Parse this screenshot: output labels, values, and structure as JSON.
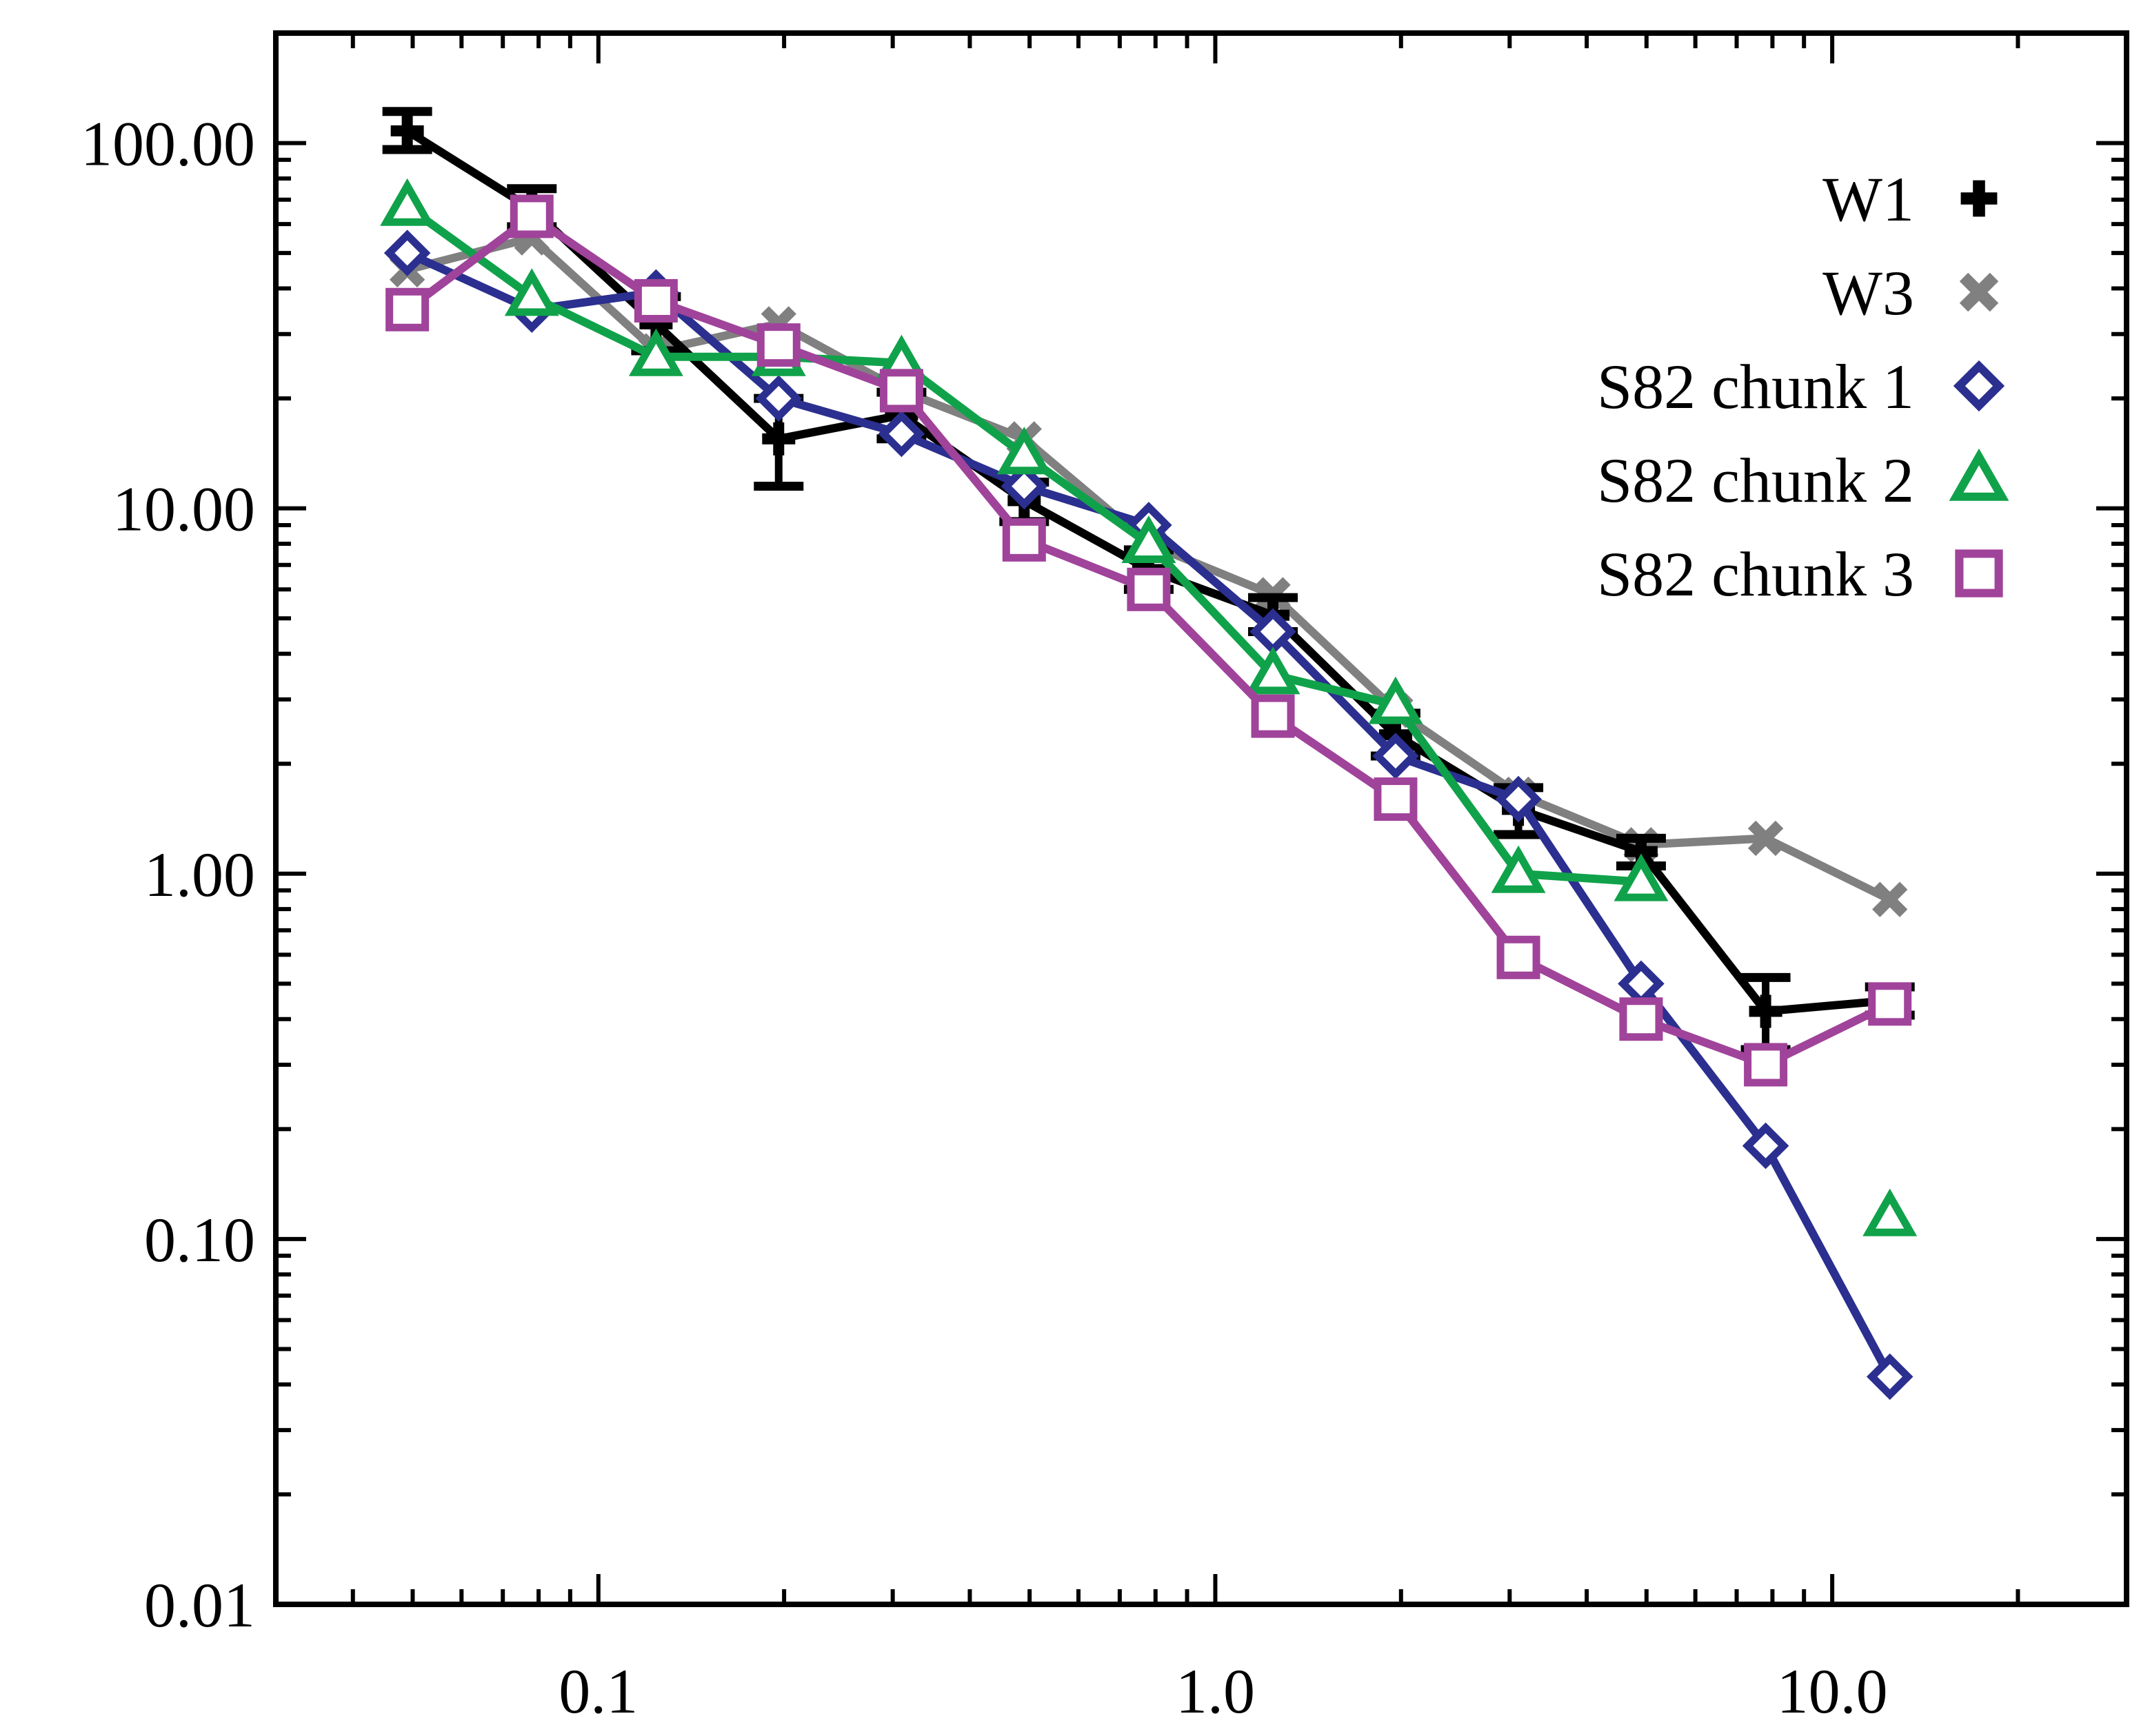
{
  "chart_data": {
    "type": "line",
    "title": "",
    "xlabel": "",
    "ylabel": "",
    "xscale": "log",
    "yscale": "log",
    "xlim": [
      0.03,
      30
    ],
    "ylim": [
      0.01,
      200
    ],
    "grid": false,
    "legend_position": "top-right",
    "x_ticks": [
      {
        "value": 0.1,
        "label": "0.1"
      },
      {
        "value": 1.0,
        "label": "1.0"
      },
      {
        "value": 10.0,
        "label": "10.0"
      }
    ],
    "y_ticks": [
      {
        "value": 0.01,
        "label": "0.01"
      },
      {
        "value": 0.1,
        "label": "0.10"
      },
      {
        "value": 1.0,
        "label": "1.00"
      },
      {
        "value": 10.0,
        "label": "10.00"
      },
      {
        "value": 100.0,
        "label": "100.00"
      }
    ],
    "series": [
      {
        "name": "W3",
        "color": "#808080",
        "marker": "x",
        "x": [
          0.049,
          0.078,
          0.124,
          0.196,
          0.31,
          0.49,
          0.78,
          1.24,
          1.96,
          3.1,
          4.9,
          7.8,
          12.4
        ],
        "y": [
          45,
          55,
          27,
          32,
          21,
          15.5,
          8,
          5.8,
          2.8,
          1.65,
          1.2,
          1.25,
          0.85
        ]
      },
      {
        "name": "W1",
        "color": "#000000",
        "marker": "plus",
        "x": [
          0.049,
          0.078,
          0.124,
          0.196,
          0.31,
          0.49,
          0.78,
          1.24,
          1.96,
          3.1,
          4.9,
          7.8,
          12.4
        ],
        "y": [
          108,
          66,
          32,
          15.5,
          18,
          10.5,
          6.8,
          5.1,
          2.4,
          1.5,
          1.15,
          0.42,
          0.45
        ],
        "err_low": [
          96,
          59,
          27,
          11.5,
          15.5,
          9.2,
          6.0,
          4.6,
          2.1,
          1.28,
          1.05,
          0.33,
          0.41
        ],
        "err_high": [
          122,
          75,
          38,
          20,
          20.8,
          11.8,
          7.7,
          5.7,
          2.75,
          1.72,
          1.25,
          0.52,
          0.49
        ]
      },
      {
        "name": "S82 chunk 1",
        "color": "#2b2f8f",
        "marker": "diamond",
        "x": [
          0.049,
          0.078,
          0.124,
          0.196,
          0.31,
          0.49,
          0.78,
          1.24,
          1.96,
          3.1,
          4.9,
          7.8,
          12.4
        ],
        "y": [
          50,
          35,
          39,
          20,
          16,
          11.5,
          9,
          4.6,
          2.1,
          1.6,
          0.5,
          0.18,
          0.042
        ]
      },
      {
        "name": "S82 chunk 2",
        "color": "#10a24a",
        "marker": "triangle",
        "x": [
          0.049,
          0.078,
          0.124,
          0.196,
          0.31,
          0.49,
          0.78,
          1.24,
          1.96,
          3.1,
          4.9,
          7.8,
          12.4
        ],
        "y": [
          67,
          38,
          26,
          26,
          25,
          14,
          8,
          3.5,
          2.9,
          1.0,
          0.95,
          null,
          0.115
        ]
      },
      {
        "name": "S82 chunk 3",
        "color": "#a0439a",
        "marker": "square",
        "x": [
          0.049,
          0.078,
          0.124,
          0.196,
          0.31,
          0.49,
          0.78,
          1.24,
          1.96,
          3.1,
          4.9,
          7.8,
          12.4
        ],
        "y": [
          35,
          63,
          37,
          28,
          21,
          8.2,
          6.0,
          2.7,
          1.6,
          0.59,
          0.4,
          0.3,
          0.44
        ]
      }
    ],
    "legend_order": [
      "W1",
      "W3",
      "S82 chunk 1",
      "S82 chunk 2",
      "S82 chunk 3"
    ]
  }
}
